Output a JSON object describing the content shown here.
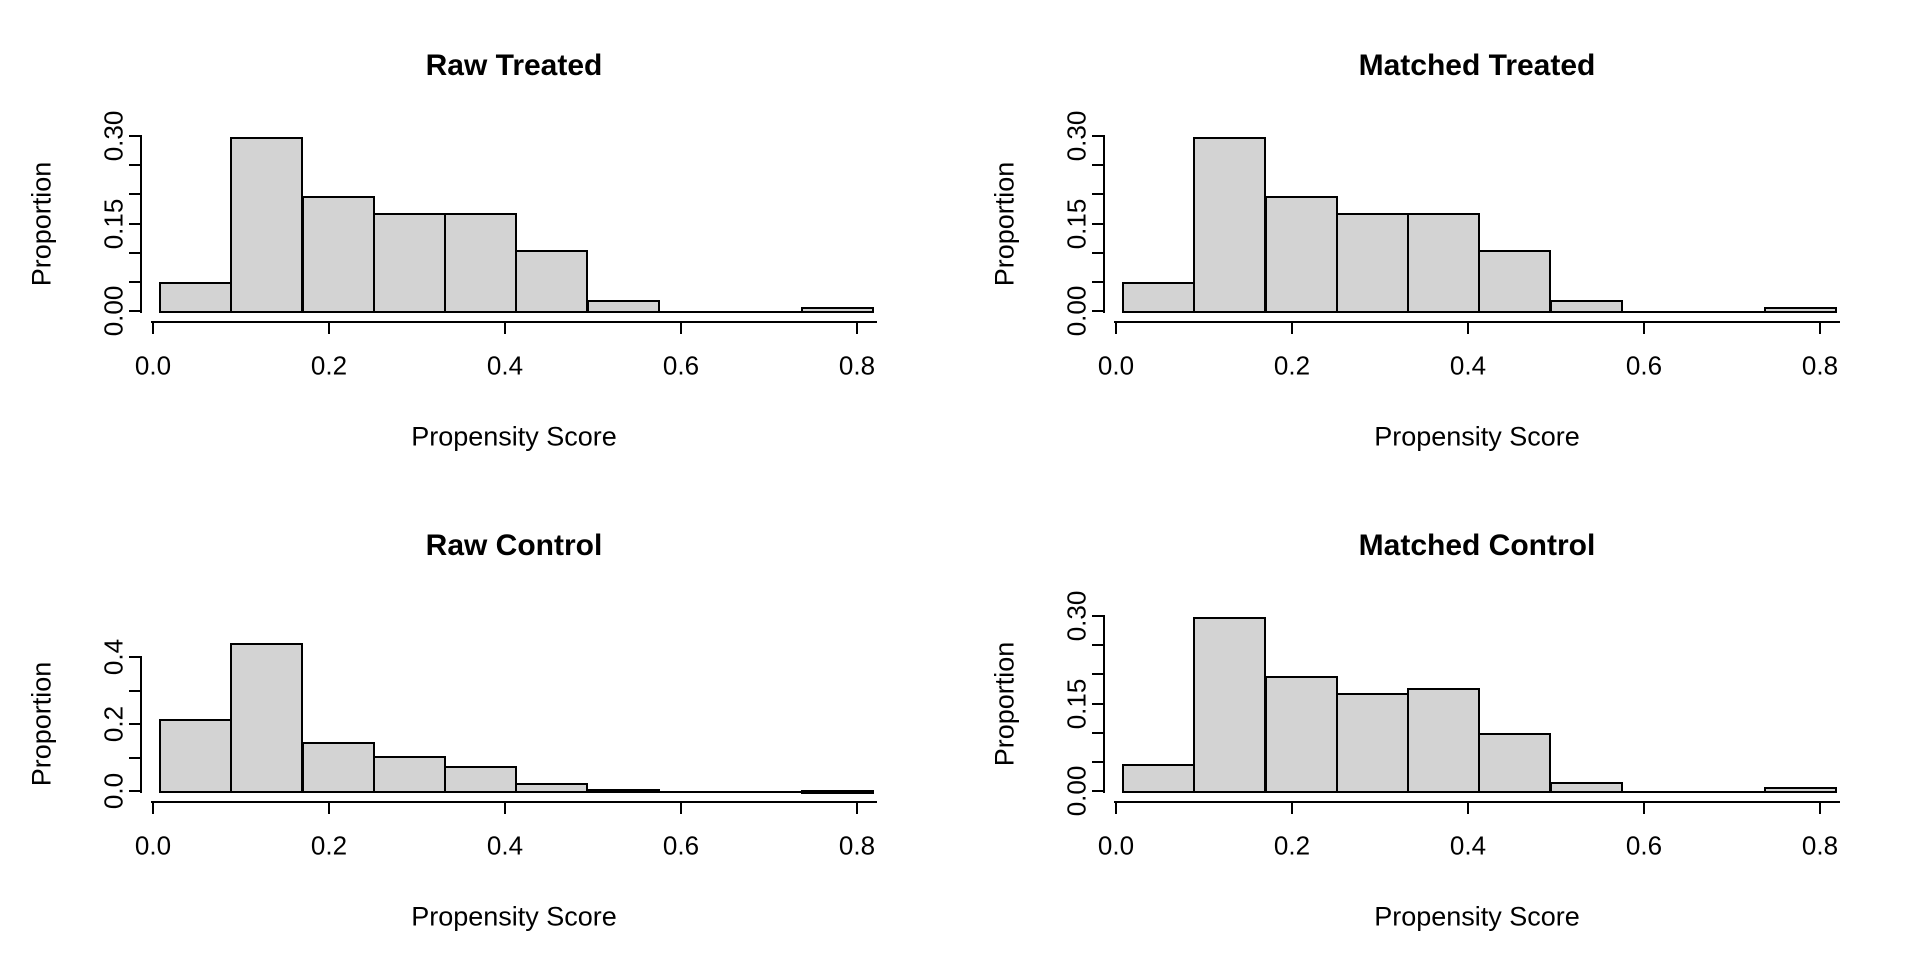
{
  "figure": {
    "background": "#ffffff",
    "description": "2x2 grid of propensity score histograms before and after matching"
  },
  "chart_data": [
    {
      "type": "bar",
      "subtype": "histogram",
      "title": "Raw Treated",
      "xlabel": "Propensity Score",
      "ylabel": "Proportion",
      "bar_fill": "#d3d3d3",
      "bar_edge": "#000000",
      "bins": {
        "start": 0.008,
        "width": 0.081
      },
      "proportions": [
        0.05,
        0.298,
        0.197,
        0.168,
        0.168,
        0.104,
        0.019,
        0.0,
        0.0,
        0.007
      ],
      "x_ticks": {
        "values": [
          0.0,
          0.2,
          0.4,
          0.6,
          0.8
        ],
        "labels": [
          "0.0",
          "0.2",
          "0.4",
          "0.6",
          "0.8"
        ]
      },
      "y_axis": {
        "max": 0.3,
        "tick_step": 0.05,
        "labeled_values": [
          0.0,
          0.15,
          0.3
        ],
        "labels": [
          "0.00",
          "0.15",
          "0.30"
        ]
      },
      "xlim": [
        0.0,
        0.82
      ],
      "grid": false
    },
    {
      "type": "bar",
      "subtype": "histogram",
      "title": "Matched Treated",
      "xlabel": "Propensity Score",
      "ylabel": "Proportion",
      "bar_fill": "#d3d3d3",
      "bar_edge": "#000000",
      "bins": {
        "start": 0.008,
        "width": 0.081
      },
      "proportions": [
        0.05,
        0.298,
        0.197,
        0.168,
        0.168,
        0.104,
        0.019,
        0.0,
        0.0,
        0.007
      ],
      "x_ticks": {
        "values": [
          0.0,
          0.2,
          0.4,
          0.6,
          0.8
        ],
        "labels": [
          "0.0",
          "0.2",
          "0.4",
          "0.6",
          "0.8"
        ]
      },
      "y_axis": {
        "max": 0.3,
        "tick_step": 0.05,
        "labeled_values": [
          0.0,
          0.15,
          0.3
        ],
        "labels": [
          "0.00",
          "0.15",
          "0.30"
        ]
      },
      "xlim": [
        0.0,
        0.82
      ],
      "grid": false
    },
    {
      "type": "bar",
      "subtype": "histogram",
      "title": "Raw Control",
      "xlabel": "Propensity Score",
      "ylabel": "Proportion",
      "bar_fill": "#d3d3d3",
      "bar_edge": "#000000",
      "bins": {
        "start": 0.008,
        "width": 0.081
      },
      "proportions": [
        0.215,
        0.443,
        0.145,
        0.104,
        0.075,
        0.024,
        0.007,
        0.002,
        0.001,
        0.004
      ],
      "x_ticks": {
        "values": [
          0.0,
          0.2,
          0.4,
          0.6,
          0.8
        ],
        "labels": [
          "0.0",
          "0.2",
          "0.4",
          "0.6",
          "0.8"
        ]
      },
      "y_axis": {
        "max": 0.4,
        "tick_step": 0.1,
        "labeled_values": [
          0.0,
          0.2,
          0.4
        ],
        "labels": [
          "0.0",
          "0.2",
          "0.4"
        ]
      },
      "xlim": [
        0.0,
        0.82
      ],
      "grid": false
    },
    {
      "type": "bar",
      "subtype": "histogram",
      "title": "Matched Control",
      "xlabel": "Propensity Score",
      "ylabel": "Proportion",
      "bar_fill": "#d3d3d3",
      "bar_edge": "#000000",
      "bins": {
        "start": 0.008,
        "width": 0.081
      },
      "proportions": [
        0.046,
        0.298,
        0.197,
        0.168,
        0.176,
        0.099,
        0.016,
        0.0,
        0.0,
        0.007
      ],
      "x_ticks": {
        "values": [
          0.0,
          0.2,
          0.4,
          0.6,
          0.8
        ],
        "labels": [
          "0.0",
          "0.2",
          "0.4",
          "0.6",
          "0.8"
        ]
      },
      "y_axis": {
        "max": 0.3,
        "tick_step": 0.05,
        "labeled_values": [
          0.0,
          0.15,
          0.3
        ],
        "labels": [
          "0.00",
          "0.15",
          "0.30"
        ]
      },
      "xlim": [
        0.0,
        0.82
      ],
      "grid": false
    }
  ]
}
